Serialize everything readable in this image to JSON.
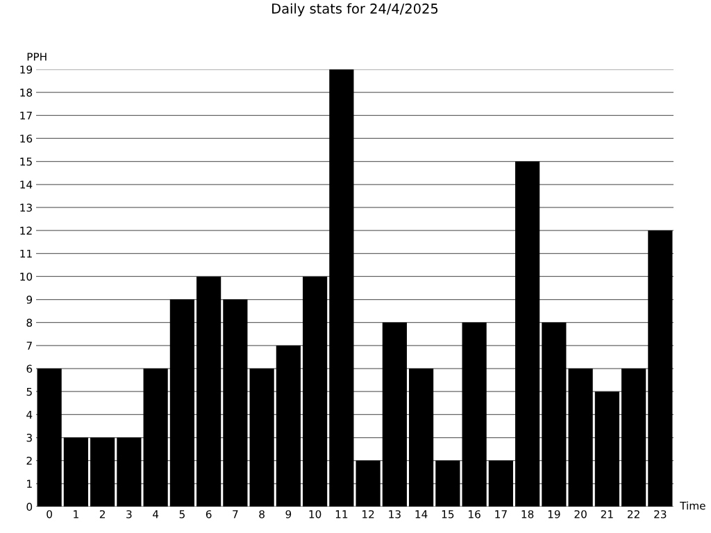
{
  "chart_data": {
    "type": "bar",
    "title": "Daily stats for 24/4/2025",
    "xlabel": "Time",
    "ylabel": "PPH",
    "categories": [
      "0",
      "1",
      "2",
      "3",
      "4",
      "5",
      "6",
      "7",
      "8",
      "9",
      "10",
      "11",
      "12",
      "13",
      "14",
      "15",
      "16",
      "17",
      "18",
      "19",
      "20",
      "21",
      "22",
      "23"
    ],
    "values": [
      6,
      3,
      3,
      3,
      6,
      9,
      10,
      9,
      6,
      7,
      10,
      19,
      2,
      8,
      6,
      2,
      8,
      2,
      15,
      8,
      6,
      5,
      6,
      12
    ],
    "color": "#000000",
    "ylim": [
      0,
      19
    ],
    "yticks": [
      0,
      1,
      2,
      3,
      4,
      5,
      6,
      7,
      8,
      9,
      10,
      11,
      12,
      13,
      14,
      15,
      16,
      17,
      18,
      19
    ],
    "grid": "y"
  }
}
